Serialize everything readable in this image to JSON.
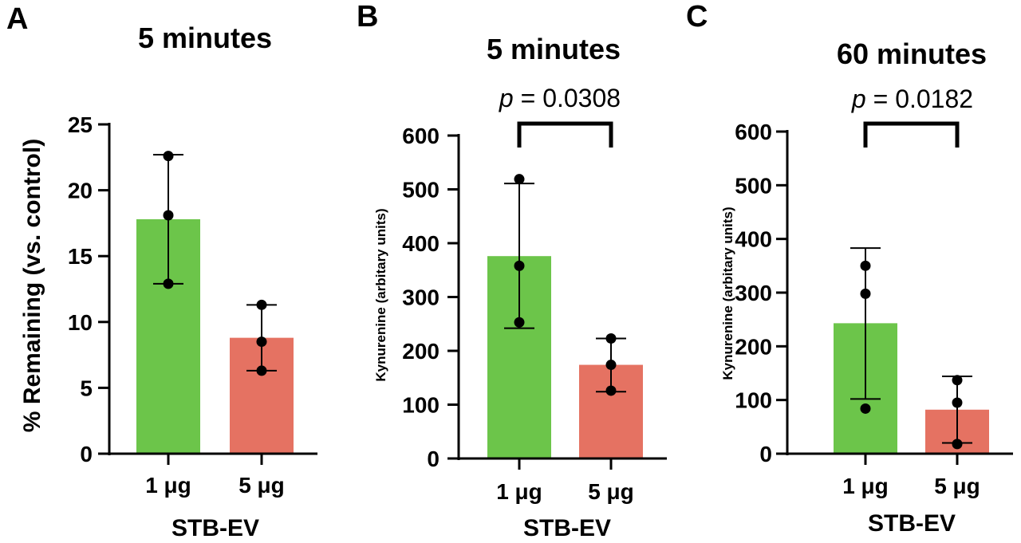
{
  "colors": {
    "bar1": "#6cc54a",
    "bar2": "#e57262",
    "ink": "#000000"
  },
  "chart_data": [
    {
      "type": "bar",
      "panel": "A",
      "title": "5 minutes",
      "categories": [
        "1 μg",
        "5 μg"
      ],
      "xlabel": "STB-EV",
      "ylabel": "% Remaining (vs. control)",
      "ylim": [
        0,
        25
      ],
      "yticks": [
        0,
        5,
        10,
        15,
        20,
        25
      ],
      "values": [
        17.8,
        8.8
      ],
      "error_low": [
        12.9,
        6.3
      ],
      "error_high": [
        22.7,
        11.3
      ],
      "points": [
        [
          22.6,
          18.1,
          12.9
        ],
        [
          11.3,
          8.5,
          6.3
        ]
      ],
      "annotation": null
    },
    {
      "type": "bar",
      "panel": "B",
      "title": "5 minutes",
      "categories": [
        "1 μg",
        "5 μg"
      ],
      "xlabel": "STB-EV",
      "ylabel": "Kynurenine (arbitary units)",
      "ylim": [
        0,
        600
      ],
      "yticks": [
        0,
        100,
        200,
        300,
        400,
        500,
        600
      ],
      "values": [
        376,
        174
      ],
      "error_low": [
        242,
        124
      ],
      "error_high": [
        511,
        223
      ],
      "points": [
        [
          519,
          358,
          253
        ],
        [
          223,
          174,
          126
        ]
      ],
      "annotation": {
        "p_symbol": "p",
        "p_value": " = 0.0308"
      }
    },
    {
      "type": "bar",
      "panel": "C",
      "title": "60  minutes",
      "categories": [
        "1 μg",
        "5 μg"
      ],
      "xlabel": "STB-EV",
      "ylabel": "Kynurenine (arbitary units)",
      "ylim": [
        0,
        600
      ],
      "yticks": [
        0,
        100,
        200,
        300,
        400,
        500,
        600
      ],
      "values": [
        243,
        82
      ],
      "error_low": [
        102,
        20
      ],
      "error_high": [
        383,
        144
      ],
      "points": [
        [
          350,
          298,
          84
        ],
        [
          137,
          95,
          18
        ]
      ],
      "annotation": {
        "p_symbol": "p",
        "p_value": " = 0.0182"
      }
    }
  ]
}
